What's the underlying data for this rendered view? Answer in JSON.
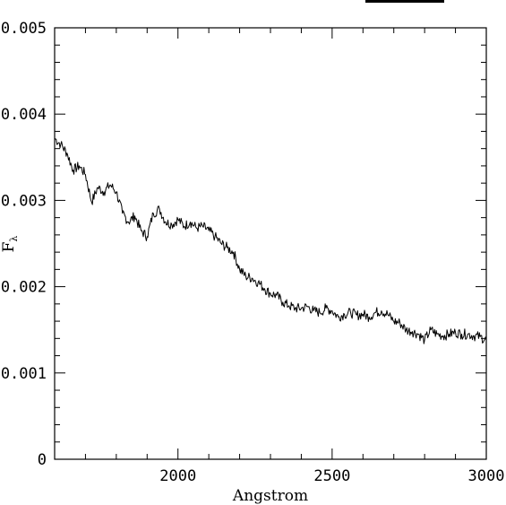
{
  "chart_data": {
    "type": "line",
    "title": "",
    "xlabel": "Angstrom",
    "ylabel": "F",
    "ylabel_subscript": "λ",
    "xlim": [
      1600,
      3000
    ],
    "ylim": [
      0,
      0.005
    ],
    "grid": false,
    "x_tick_labels": [
      "2000",
      "2500",
      "3000"
    ],
    "y_tick_labels": [
      "0",
      "0.001",
      "0.002",
      "0.003",
      "0.004",
      "0.005"
    ],
    "series": [
      {
        "x": [
          1600,
          1620,
          1640,
          1660,
          1680,
          1700,
          1720,
          1740,
          1760,
          1780,
          1800,
          1820,
          1840,
          1860,
          1880,
          1900,
          1920,
          1940,
          1960,
          1980,
          2000,
          2020,
          2040,
          2060,
          2080,
          2100,
          2120,
          2140,
          2160,
          2180,
          2200,
          2220,
          2240,
          2260,
          2280,
          2300,
          2320,
          2340,
          2360,
          2380,
          2400,
          2420,
          2440,
          2460,
          2480,
          2500,
          2520,
          2540,
          2560,
          2580,
          2600,
          2620,
          2640,
          2660,
          2680,
          2700,
          2720,
          2740,
          2760,
          2780,
          2800,
          2820,
          2840,
          2860,
          2880,
          2900,
          2920,
          2940,
          2960,
          2980,
          3000
        ],
        "y": [
          0.00372,
          0.00365,
          0.00355,
          0.00335,
          0.0034,
          0.0033,
          0.00298,
          0.00315,
          0.0031,
          0.00318,
          0.0031,
          0.00285,
          0.00275,
          0.00282,
          0.00265,
          0.00258,
          0.00285,
          0.0029,
          0.00275,
          0.00272,
          0.00278,
          0.0027,
          0.00275,
          0.00268,
          0.0027,
          0.00265,
          0.00258,
          0.0025,
          0.00245,
          0.0024,
          0.0022,
          0.00212,
          0.0021,
          0.00205,
          0.00198,
          0.00192,
          0.0019,
          0.00182,
          0.00178,
          0.00175,
          0.00175,
          0.00177,
          0.00172,
          0.0017,
          0.00175,
          0.00172,
          0.00165,
          0.00168,
          0.0017,
          0.00167,
          0.00168,
          0.00165,
          0.0017,
          0.00172,
          0.00168,
          0.0016,
          0.00158,
          0.0015,
          0.00148,
          0.00145,
          0.00138,
          0.0015,
          0.00145,
          0.00143,
          0.00145,
          0.00147,
          0.00145,
          0.00145,
          0.00143,
          0.00142,
          0.00138
        ]
      }
    ]
  }
}
